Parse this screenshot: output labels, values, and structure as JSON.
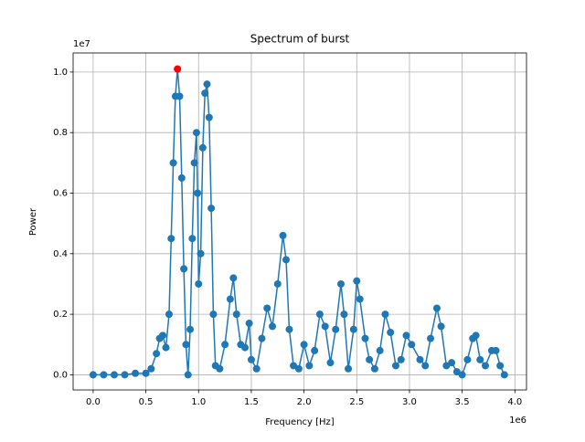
{
  "chart_data": {
    "type": "line",
    "title": "Spectrum of burst",
    "x_label": "Frequency [Hz]",
    "y_label": "Power",
    "x_offset_label": "1e6",
    "y_offset_label": "1e7",
    "x": [
      0.0,
      0.1,
      0.2,
      0.3,
      0.4,
      0.5,
      0.55,
      0.6,
      0.63,
      0.66,
      0.69,
      0.72,
      0.74,
      0.76,
      0.78,
      0.8,
      0.82,
      0.84,
      0.86,
      0.88,
      0.9,
      0.92,
      0.94,
      0.96,
      0.98,
      0.99,
      1.0,
      1.02,
      1.04,
      1.06,
      1.08,
      1.1,
      1.12,
      1.14,
      1.16,
      1.2,
      1.25,
      1.3,
      1.33,
      1.36,
      1.4,
      1.44,
      1.48,
      1.5,
      1.55,
      1.6,
      1.65,
      1.7,
      1.75,
      1.8,
      1.83,
      1.86,
      1.9,
      1.95,
      2.0,
      2.05,
      2.1,
      2.15,
      2.2,
      2.25,
      2.3,
      2.35,
      2.38,
      2.42,
      2.47,
      2.5,
      2.53,
      2.58,
      2.62,
      2.67,
      2.72,
      2.77,
      2.82,
      2.87,
      2.92,
      2.97,
      3.02,
      3.1,
      3.15,
      3.2,
      3.26,
      3.3,
      3.35,
      3.4,
      3.45,
      3.5,
      3.55,
      3.6,
      3.63,
      3.67,
      3.72,
      3.78,
      3.82,
      3.86,
      3.9
    ],
    "values": [
      0.0,
      0.0,
      0.0,
      0.0,
      0.005,
      0.005,
      0.02,
      0.07,
      0.12,
      0.13,
      0.09,
      0.2,
      0.45,
      0.7,
      0.92,
      1.01,
      0.92,
      0.65,
      0.35,
      0.1,
      0.0,
      0.15,
      0.45,
      0.7,
      0.8,
      0.6,
      0.3,
      0.4,
      0.75,
      0.93,
      0.96,
      0.85,
      0.55,
      0.2,
      0.03,
      0.02,
      0.1,
      0.25,
      0.32,
      0.2,
      0.1,
      0.09,
      0.17,
      0.05,
      0.02,
      0.12,
      0.22,
      0.16,
      0.3,
      0.46,
      0.38,
      0.15,
      0.03,
      0.02,
      0.1,
      0.03,
      0.08,
      0.2,
      0.16,
      0.04,
      0.15,
      0.3,
      0.2,
      0.02,
      0.15,
      0.31,
      0.25,
      0.12,
      0.05,
      0.02,
      0.08,
      0.2,
      0.14,
      0.03,
      0.05,
      0.13,
      0.1,
      0.05,
      0.03,
      0.12,
      0.22,
      0.16,
      0.03,
      0.04,
      0.01,
      0.0,
      0.05,
      0.12,
      0.13,
      0.05,
      0.03,
      0.08,
      0.08,
      0.03,
      0.0
    ],
    "color": "#1f77b4",
    "peak": {
      "x": 0.8,
      "y": 1.01,
      "color": "#ff0000"
    },
    "xlim": [
      -0.19,
      4.11
    ],
    "ylim": [
      -0.05,
      1.063
    ],
    "xticks": [
      {
        "value": 0,
        "label": "0.0"
      },
      0.5,
      {
        "value": 1,
        "label": "1.0"
      },
      1.5,
      {
        "value": 2,
        "label": "2.0"
      },
      2.5,
      {
        "value": 3,
        "label": "3.0"
      },
      3.5,
      {
        "value": 4,
        "label": "4.0"
      }
    ],
    "yticks": [
      {
        "value": 0,
        "label": "0.0"
      },
      0.2,
      0.4,
      0.6,
      0.8,
      {
        "value": 1,
        "label": "1.0"
      }
    ],
    "grid": true
  }
}
